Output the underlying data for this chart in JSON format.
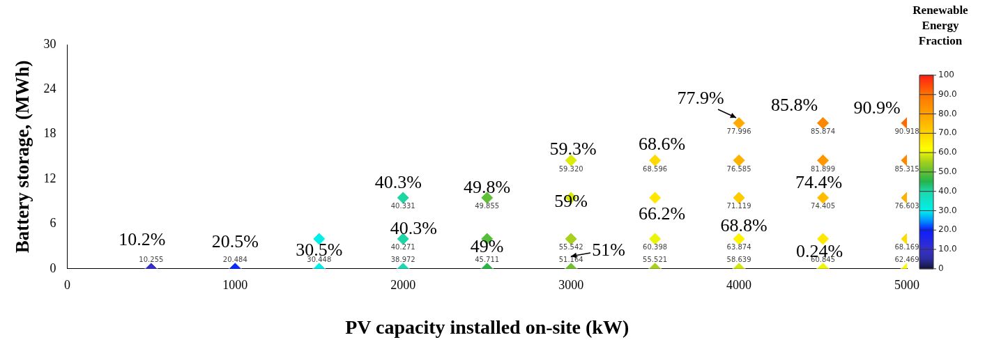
{
  "chart_data": {
    "type": "scatter",
    "xlabel": "PV capacity installed on-site (kW)",
    "ylabel": "Battery storage, (MWh)",
    "clabel": "Renewable Energy Fraction",
    "xlim": [
      0,
      5000
    ],
    "xticks": [
      0,
      1000,
      2000,
      3000,
      4000,
      5000
    ],
    "ylim": [
      0,
      30
    ],
    "yticks": [
      0,
      6,
      12,
      18,
      24,
      30
    ],
    "clim": [
      0,
      100
    ],
    "cticks": [
      0,
      {
        "value": 10,
        "label": "10.0"
      },
      {
        "value": 20,
        "label": "20.0"
      },
      {
        "value": 30,
        "label": "30.0"
      },
      {
        "value": 40,
        "label": "40.0"
      },
      {
        "value": 50,
        "label": "50.0"
      },
      {
        "value": 60,
        "label": "60.0"
      },
      {
        "value": 70,
        "label": "70.0"
      },
      {
        "value": 80,
        "label": "80.0"
      },
      {
        "value": 90,
        "label": "90.0"
      },
      100
    ],
    "marker": "diamond",
    "x": [
      500,
      1000,
      1500,
      2000,
      2500,
      3000,
      3500,
      4000,
      4500,
      5000,
      1500,
      2000,
      2500,
      3000,
      3500,
      4000,
      4500,
      5000,
      2000,
      2500,
      3000,
      3500,
      4000,
      4500,
      5000,
      3000,
      3500,
      4000,
      4500,
      5000,
      4000,
      4500,
      5000
    ],
    "values": [
      0,
      0,
      0,
      0,
      0,
      0,
      0,
      0,
      0,
      0,
      4,
      4,
      4,
      4,
      4,
      4,
      4,
      4,
      9.5,
      9.5,
      9.5,
      9.5,
      9.5,
      9.5,
      9.5,
      14.5,
      14.5,
      14.5,
      14.5,
      14.5,
      19.5,
      19.5,
      19.5
    ],
    "cvalues": [
      10.255,
      20.484,
      30.448,
      38.972,
      45.711,
      51.164,
      55.521,
      58.639,
      60.845,
      62.469,
      30.5,
      40.271,
      49,
      55.542,
      60.398,
      63.874,
      66.2,
      68.169,
      40.331,
      49.855,
      59,
      66.2,
      71.119,
      74.405,
      76.603,
      59.32,
      68.596,
      76.585,
      81.899,
      85.315,
      77.996,
      85.874,
      90.918
    ],
    "annotations": [
      {
        "text": "10.2%",
        "x": 500,
        "y": 0
      },
      {
        "text": "20.5%",
        "x": 1000,
        "y": 0
      },
      {
        "text": "30.5%",
        "x": 1500,
        "y": 0
      },
      {
        "text": "40.3%",
        "x": 2000,
        "y": 9.5
      },
      {
        "text": "40.3%",
        "x": 2000,
        "y": 4
      },
      {
        "text": "49.8%",
        "x": 2500,
        "y": 9.5
      },
      {
        "text": "49%",
        "x": 2500,
        "y": 4
      },
      {
        "text": "59.3%",
        "x": 3000,
        "y": 14.5
      },
      {
        "text": "59%",
        "x": 3000,
        "y": 9.5
      },
      {
        "text": "51%",
        "x": 3000,
        "y": 0
      },
      {
        "text": "66.2%",
        "x": 3500,
        "y": 9.5
      },
      {
        "text": "68.6%",
        "x": 3500,
        "y": 14.5
      },
      {
        "text": "68.8%",
        "x": 4000,
        "y": 4
      },
      {
        "text": "0.24%",
        "x": 4500,
        "y": 4
      },
      {
        "text": "74.4%",
        "x": 4500,
        "y": 9.5
      },
      {
        "text": "77.9%",
        "x": 4000,
        "y": 19.5
      },
      {
        "text": "85.8%",
        "x": 4500,
        "y": 19.5
      },
      {
        "text": "90.9%",
        "x": 5000,
        "y": 19.5
      },
      {
        "text": "10.255",
        "x": 500,
        "y": 0
      },
      {
        "text": "20.484",
        "x": 1000,
        "y": 0
      },
      {
        "text": "30.448",
        "x": 1500,
        "y": 0
      },
      {
        "text": "38.972",
        "x": 2000,
        "y": 0
      },
      {
        "text": "45.711",
        "x": 2500,
        "y": 0
      },
      {
        "text": "51.164",
        "x": 3000,
        "y": 0
      },
      {
        "text": "55.521",
        "x": 3500,
        "y": 0
      },
      {
        "text": "58.639",
        "x": 4000,
        "y": 0
      },
      {
        "text": "60.845",
        "x": 4500,
        "y": 0
      },
      {
        "text": "62.469",
        "x": 5000,
        "y": 0
      },
      {
        "text": "40.271",
        "x": 2000,
        "y": 4
      },
      {
        "text": "55.542",
        "x": 3000,
        "y": 4
      },
      {
        "text": "60.398",
        "x": 3500,
        "y": 4
      },
      {
        "text": "63.874",
        "x": 4000,
        "y": 4
      },
      {
        "text": "68.169",
        "x": 5000,
        "y": 4
      },
      {
        "text": "40.331",
        "x": 2000,
        "y": 9.5
      },
      {
        "text": "49.855",
        "x": 2500,
        "y": 9.5
      },
      {
        "text": "71.119",
        "x": 4000,
        "y": 9.5
      },
      {
        "text": "74.405",
        "x": 4500,
        "y": 9.5
      },
      {
        "text": "76.603",
        "x": 5000,
        "y": 9.5
      },
      {
        "text": "59.320",
        "x": 3000,
        "y": 14.5
      },
      {
        "text": "68.596",
        "x": 3500,
        "y": 14.5
      },
      {
        "text": "76.585",
        "x": 4000,
        "y": 14.5
      },
      {
        "text": "81.899",
        "x": 4500,
        "y": 14.5
      },
      {
        "text": "85.315",
        "x": 5000,
        "y": 14.5
      },
      {
        "text": "77.996",
        "x": 4000,
        "y": 19.5
      },
      {
        "text": "85.874",
        "x": 4500,
        "y": 19.5
      },
      {
        "text": "90.918",
        "x": 5000,
        "y": 19.5
      }
    ]
  }
}
